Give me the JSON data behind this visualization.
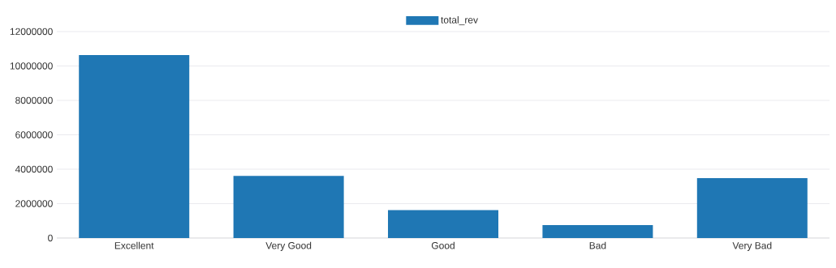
{
  "chart_data": {
    "type": "bar",
    "categories": [
      "Excellent",
      "Very Good",
      "Good",
      "Bad",
      "Very Bad"
    ],
    "series": [
      {
        "name": "total_rev",
        "color": "#1f77b4",
        "values": [
          10630000,
          3610000,
          1620000,
          750000,
          3480000
        ]
      }
    ],
    "ylim": [
      0,
      12000000
    ],
    "yticks": [
      0,
      2000000,
      4000000,
      6000000,
      8000000,
      10000000,
      12000000
    ],
    "grid": "y",
    "legend": "top"
  }
}
